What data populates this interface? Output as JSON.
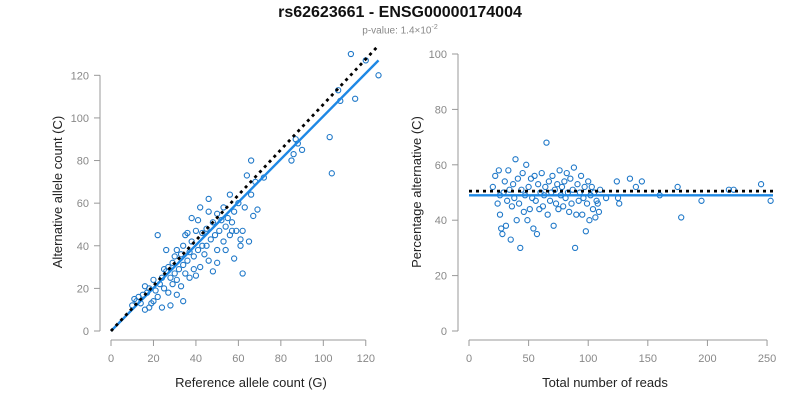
{
  "header": {
    "title": "rs62623661 - ENSG00000174004",
    "subtitle_prefix": "p-value: 1.4×10",
    "subtitle_exponent": "-2"
  },
  "colors": {
    "points": "#1f78c8",
    "fit_line": "#1e88e5",
    "reference_line": "#000000",
    "axis": "#999999"
  },
  "chart_data": [
    {
      "type": "scatter",
      "title": "",
      "xlabel": "Reference allele count (G)",
      "ylabel": "Alternative allele count (C)",
      "xlim": [
        0,
        130
      ],
      "ylim": [
        0,
        130
      ],
      "x_ticks": [
        0,
        20,
        40,
        60,
        80,
        100,
        120
      ],
      "y_ticks": [
        0,
        20,
        40,
        60,
        80,
        100,
        120
      ],
      "points": [
        [
          10,
          12
        ],
        [
          11,
          15
        ],
        [
          12,
          14
        ],
        [
          13,
          16
        ],
        [
          14,
          13
        ],
        [
          15,
          17
        ],
        [
          16,
          10
        ],
        [
          17,
          18
        ],
        [
          18,
          11
        ],
        [
          18,
          20
        ],
        [
          19,
          13
        ],
        [
          20,
          24
        ],
        [
          21,
          19
        ],
        [
          22,
          16
        ],
        [
          22,
          45
        ],
        [
          23,
          22
        ],
        [
          24,
          11
        ],
        [
          24,
          25
        ],
        [
          25,
          20
        ],
        [
          26,
          28
        ],
        [
          27,
          18
        ],
        [
          27,
          30
        ],
        [
          28,
          25
        ],
        [
          29,
          22
        ],
        [
          29,
          32
        ],
        [
          30,
          27
        ],
        [
          30,
          35
        ],
        [
          31,
          24
        ],
        [
          31,
          38
        ],
        [
          32,
          29
        ],
        [
          33,
          21
        ],
        [
          33,
          36
        ],
        [
          34,
          31
        ],
        [
          34,
          40
        ],
        [
          35,
          27
        ],
        [
          35,
          45
        ],
        [
          36,
          33
        ],
        [
          37,
          37
        ],
        [
          37,
          25
        ],
        [
          38,
          42
        ],
        [
          38,
          53
        ],
        [
          39,
          35
        ],
        [
          39,
          29
        ],
        [
          40,
          47
        ],
        [
          41,
          38
        ],
        [
          41,
          52
        ],
        [
          42,
          30
        ],
        [
          43,
          40
        ],
        [
          43,
          46
        ],
        [
          44,
          36
        ],
        [
          45,
          48
        ],
        [
          46,
          33
        ],
        [
          46,
          56
        ],
        [
          47,
          43
        ],
        [
          48,
          51
        ],
        [
          49,
          45
        ],
        [
          50,
          38
        ],
        [
          50,
          55
        ],
        [
          51,
          47
        ],
        [
          52,
          52
        ],
        [
          53,
          42
        ],
        [
          53,
          58
        ],
        [
          54,
          49
        ],
        [
          55,
          53
        ],
        [
          56,
          45
        ],
        [
          56,
          64
        ],
        [
          57,
          51
        ],
        [
          58,
          56
        ],
        [
          59,
          47
        ],
        [
          60,
          60
        ],
        [
          61,
          43
        ],
        [
          61,
          40
        ],
        [
          62,
          27
        ],
        [
          62,
          47
        ],
        [
          63,
          58
        ],
        [
          64,
          73
        ],
        [
          65,
          42
        ],
        [
          66,
          64
        ],
        [
          66,
          80
        ],
        [
          67,
          54
        ],
        [
          68,
          70
        ],
        [
          69,
          57
        ],
        [
          72,
          72
        ],
        [
          26,
          38
        ],
        [
          48,
          28
        ],
        [
          45,
          40
        ],
        [
          28,
          12
        ],
        [
          34,
          14
        ],
        [
          20,
          14
        ],
        [
          16,
          21
        ],
        [
          40,
          26
        ],
        [
          58,
          34
        ],
        [
          46,
          62
        ],
        [
          54,
          38
        ],
        [
          36,
          46
        ],
        [
          42,
          58
        ],
        [
          50,
          32
        ],
        [
          57,
          47
        ],
        [
          31,
          17
        ],
        [
          25,
          29
        ],
        [
          85,
          80
        ],
        [
          86,
          83
        ],
        [
          87,
          90
        ],
        [
          88,
          88
        ],
        [
          90,
          85
        ],
        [
          103,
          91
        ],
        [
          104,
          74
        ],
        [
          107,
          113
        ],
        [
          108,
          108
        ],
        [
          113,
          130
        ],
        [
          115,
          109
        ],
        [
          120,
          127
        ],
        [
          126,
          120
        ]
      ],
      "series": [
        {
          "kind": "points",
          "values_key": "points"
        },
        {
          "kind": "fit",
          "from": [
            0,
            0
          ],
          "to": [
            126,
            127
          ]
        },
        {
          "kind": "reference",
          "from": [
            0,
            0
          ],
          "to": [
            126,
            134
          ]
        }
      ]
    },
    {
      "type": "scatter",
      "title": "",
      "xlabel": "Total number of reads",
      "ylabel": "Percentage alternative (C)",
      "xlim": [
        0,
        255
      ],
      "ylim": [
        0,
        100
      ],
      "x_ticks": [
        0,
        50,
        100,
        150,
        200,
        250
      ],
      "y_ticks": [
        0,
        20,
        40,
        60,
        80,
        100
      ],
      "points": [
        [
          20,
          52
        ],
        [
          22,
          56
        ],
        [
          24,
          46
        ],
        [
          25,
          58
        ],
        [
          26,
          42
        ],
        [
          26,
          49
        ],
        [
          27,
          37
        ],
        [
          28,
          35
        ],
        [
          29,
          50
        ],
        [
          30,
          54
        ],
        [
          31,
          38
        ],
        [
          32,
          47
        ],
        [
          33,
          58
        ],
        [
          34,
          51
        ],
        [
          35,
          33
        ],
        [
          36,
          45
        ],
        [
          37,
          53
        ],
        [
          38,
          48
        ],
        [
          39,
          62
        ],
        [
          40,
          40
        ],
        [
          41,
          55
        ],
        [
          42,
          46
        ],
        [
          43,
          30
        ],
        [
          44,
          51
        ],
        [
          45,
          57
        ],
        [
          46,
          43
        ],
        [
          47,
          49
        ],
        [
          48,
          60
        ],
        [
          49,
          40
        ],
        [
          50,
          52
        ],
        [
          51,
          44
        ],
        [
          52,
          55
        ],
        [
          53,
          48
        ],
        [
          54,
          37
        ],
        [
          55,
          56
        ],
        [
          56,
          47
        ],
        [
          57,
          35
        ],
        [
          58,
          53
        ],
        [
          59,
          44
        ],
        [
          60,
          50
        ],
        [
          61,
          57
        ],
        [
          62,
          45
        ],
        [
          63,
          49
        ],
        [
          64,
          52
        ],
        [
          65,
          68
        ],
        [
          66,
          42
        ],
        [
          67,
          54
        ],
        [
          68,
          47
        ],
        [
          69,
          50
        ],
        [
          70,
          56
        ],
        [
          71,
          38
        ],
        [
          72,
          51
        ],
        [
          73,
          46
        ],
        [
          74,
          53
        ],
        [
          75,
          44
        ],
        [
          76,
          58
        ],
        [
          77,
          49
        ],
        [
          78,
          52
        ],
        [
          79,
          45
        ],
        [
          80,
          54
        ],
        [
          81,
          48
        ],
        [
          82,
          57
        ],
        [
          83,
          50
        ],
        [
          84,
          43
        ],
        [
          85,
          55
        ],
        [
          86,
          46
        ],
        [
          87,
          51
        ],
        [
          88,
          59
        ],
        [
          89,
          30
        ],
        [
          90,
          42
        ],
        [
          91,
          53
        ],
        [
          92,
          47
        ],
        [
          93,
          50
        ],
        [
          94,
          56
        ],
        [
          95,
          42
        ],
        [
          96,
          48
        ],
        [
          97,
          52
        ],
        [
          98,
          36
        ],
        [
          99,
          46
        ],
        [
          100,
          54
        ],
        [
          101,
          40
        ],
        [
          102,
          49
        ],
        [
          103,
          52
        ],
        [
          104,
          44
        ],
        [
          105,
          50
        ],
        [
          106,
          41
        ],
        [
          107,
          47
        ],
        [
          108,
          46
        ],
        [
          109,
          43
        ],
        [
          110,
          51
        ],
        [
          115,
          48
        ],
        [
          124,
          54
        ],
        [
          125,
          48
        ],
        [
          126,
          46
        ],
        [
          135,
          55
        ],
        [
          140,
          52
        ],
        [
          145,
          54
        ],
        [
          160,
          49
        ],
        [
          175,
          52
        ],
        [
          178,
          41
        ],
        [
          195,
          47
        ],
        [
          218,
          51
        ],
        [
          222,
          51
        ],
        [
          245,
          53
        ],
        [
          253,
          47
        ]
      ],
      "series": [
        {
          "kind": "points",
          "values_key": "points"
        },
        {
          "kind": "fit",
          "from": [
            0,
            49
          ],
          "to": [
            255,
            49
          ]
        },
        {
          "kind": "reference",
          "from": [
            0,
            50.5
          ],
          "to": [
            255,
            50.5
          ]
        }
      ]
    }
  ]
}
